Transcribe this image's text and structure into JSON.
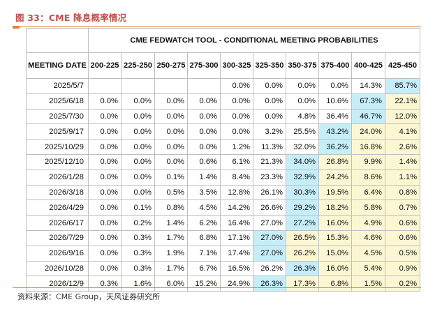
{
  "figure_title": "图 33：CME 降息概率情况",
  "source": "资料来源：CME Group，天风证券研究所",
  "table": {
    "title": "CME FEDWATCH TOOL - CONDITIONAL MEETING PROBABILITIES",
    "row_header": "MEETING DATE",
    "columns": [
      "200-225",
      "225-250",
      "250-275",
      "275-300",
      "300-325",
      "325-350",
      "350-375",
      "375-400",
      "400-425",
      "425-450"
    ],
    "rows": [
      {
        "date": "2025/5/7",
        "values": [
          "",
          "",
          "",
          "",
          "0.0%",
          "0.0%",
          "0.0%",
          "0.0%",
          "14.3%",
          "85.7%"
        ]
      },
      {
        "date": "2025/6/18",
        "values": [
          "0.0%",
          "0.0%",
          "0.0%",
          "0.0%",
          "0.0%",
          "0.0%",
          "0.0%",
          "10.6%",
          "67.3%",
          "22.1%"
        ]
      },
      {
        "date": "2025/7/30",
        "values": [
          "0.0%",
          "0.0%",
          "0.0%",
          "0.0%",
          "0.0%",
          "0.0%",
          "4.8%",
          "36.4%",
          "46.7%",
          "12.0%"
        ]
      },
      {
        "date": "2025/9/17",
        "values": [
          "0.0%",
          "0.0%",
          "0.0%",
          "0.0%",
          "0.0%",
          "3.2%",
          "25.5%",
          "43.2%",
          "24.0%",
          "4.1%"
        ]
      },
      {
        "date": "2025/10/29",
        "values": [
          "0.0%",
          "0.0%",
          "0.0%",
          "0.0%",
          "1.2%",
          "11.3%",
          "32.0%",
          "36.2%",
          "16.8%",
          "2.6%"
        ]
      },
      {
        "date": "2025/12/10",
        "values": [
          "0.0%",
          "0.0%",
          "0.0%",
          "0.6%",
          "6.1%",
          "21.3%",
          "34.0%",
          "26.8%",
          "9.9%",
          "1.4%"
        ]
      },
      {
        "date": "2026/1/28",
        "values": [
          "0.0%",
          "0.0%",
          "0.1%",
          "1.4%",
          "8.4%",
          "23.3%",
          "32.9%",
          "24.2%",
          "8.6%",
          "1.1%"
        ]
      },
      {
        "date": "2026/3/18",
        "values": [
          "0.0%",
          "0.0%",
          "0.5%",
          "3.5%",
          "12.8%",
          "26.1%",
          "30.3%",
          "19.5%",
          "6.4%",
          "0.8%"
        ]
      },
      {
        "date": "2026/4/29",
        "values": [
          "0.0%",
          "0.1%",
          "0.8%",
          "4.5%",
          "14.2%",
          "26.6%",
          "29.2%",
          "18.2%",
          "5.8%",
          "0.7%"
        ]
      },
      {
        "date": "2026/6/17",
        "values": [
          "0.0%",
          "0.2%",
          "1.4%",
          "6.2%",
          "16.4%",
          "27.0%",
          "27.2%",
          "16.0%",
          "4.9%",
          "0.6%"
        ]
      },
      {
        "date": "2026/7/29",
        "values": [
          "0.0%",
          "0.3%",
          "1.7%",
          "6.8%",
          "17.1%",
          "27.0%",
          "26.5%",
          "15.3%",
          "4.6%",
          "0.6%"
        ]
      },
      {
        "date": "2026/9/16",
        "values": [
          "0.0%",
          "0.3%",
          "1.9%",
          "7.1%",
          "17.4%",
          "27.0%",
          "26.2%",
          "15.0%",
          "4.5%",
          "0.5%"
        ]
      },
      {
        "date": "2026/10/28",
        "values": [
          "0.0%",
          "0.3%",
          "1.7%",
          "6.7%",
          "16.5%",
          "26.2%",
          "26.3%",
          "16.0%",
          "5.4%",
          "0.9%"
        ]
      },
      {
        "date": "2026/12/9",
        "values": [
          "0.3%",
          "1.6%",
          "6.0%",
          "15.2%",
          "24.9%",
          "26.3%",
          "17.3%",
          "6.8%",
          "1.5%",
          "0.2%"
        ]
      }
    ],
    "highlight_col_by_row": [
      9,
      8,
      8,
      7,
      7,
      6,
      6,
      6,
      6,
      6,
      5,
      5,
      6,
      5
    ],
    "colors": {
      "highlight": "#c6eef9",
      "shaded": "#fbf7d2",
      "accent": "#e3852b",
      "title": "#c0504d"
    }
  }
}
